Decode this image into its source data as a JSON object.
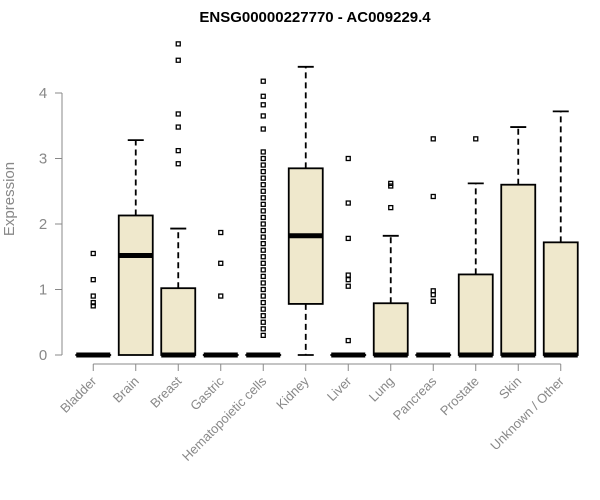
{
  "chart_data": {
    "type": "boxplot",
    "title": "ENSG00000227770 - AC009229.4",
    "ylabel": "Expression",
    "xlabel": "",
    "ylim": [
      0,
      4.8
    ],
    "yticks": [
      0,
      1,
      2,
      3,
      4
    ],
    "categories": [
      "Bladder",
      "Brain",
      "Breast",
      "Gastric",
      "Hematopoietic cells",
      "Kidney",
      "Liver",
      "Lung",
      "Pancreas",
      "Prostate",
      "Skin",
      "Unknown / Other"
    ],
    "boxes": [
      {
        "q1": 0,
        "median": 0,
        "q3": 0,
        "whisker_low": 0,
        "whisker_high": 0,
        "outliers": [
          0.75,
          0.8,
          0.9,
          1.15,
          1.55
        ]
      },
      {
        "q1": 0,
        "median": 1.52,
        "q3": 2.13,
        "whisker_low": 0,
        "whisker_high": 3.28,
        "outliers": []
      },
      {
        "q1": 0,
        "median": 0,
        "q3": 1.02,
        "whisker_low": 0,
        "whisker_high": 1.93,
        "outliers": [
          2.92,
          3.12,
          3.48,
          3.68,
          4.5,
          4.75
        ]
      },
      {
        "q1": 0,
        "median": 0,
        "q3": 0,
        "whisker_low": 0,
        "whisker_high": 0,
        "outliers": [
          0.9,
          1.4,
          1.87
        ]
      },
      {
        "q1": 0,
        "median": 0,
        "q3": 0,
        "whisker_low": 0,
        "whisker_high": 0,
        "outliers": [
          0.3,
          0.4,
          0.5,
          0.6,
          0.7,
          0.8,
          0.9,
          1.0,
          1.1,
          1.2,
          1.3,
          1.4,
          1.5,
          1.6,
          1.7,
          1.8,
          1.9,
          2.0,
          2.1,
          2.2,
          2.3,
          2.4,
          2.5,
          2.6,
          2.7,
          2.8,
          2.9,
          3.0,
          3.1,
          3.45,
          3.65,
          3.82,
          3.95,
          4.18
        ]
      },
      {
        "q1": 0.78,
        "median": 1.82,
        "q3": 2.85,
        "whisker_low": 0,
        "whisker_high": 4.4,
        "outliers": []
      },
      {
        "q1": 0,
        "median": 0,
        "q3": 0,
        "whisker_low": 0,
        "whisker_high": 0,
        "outliers": [
          0.22,
          1.05,
          1.15,
          1.22,
          1.78,
          2.32,
          3.0
        ]
      },
      {
        "q1": 0,
        "median": 0,
        "q3": 0.79,
        "whisker_low": 0,
        "whisker_high": 1.82,
        "outliers": [
          2.25,
          2.58,
          2.62
        ]
      },
      {
        "q1": 0,
        "median": 0,
        "q3": 0,
        "whisker_low": 0,
        "whisker_high": 0,
        "outliers": [
          0.82,
          0.92,
          0.98,
          2.42,
          3.3
        ]
      },
      {
        "q1": 0,
        "median": 0,
        "q3": 1.23,
        "whisker_low": 0,
        "whisker_high": 2.62,
        "outliers": [
          3.3
        ]
      },
      {
        "q1": 0,
        "median": 0,
        "q3": 2.6,
        "whisker_low": 0,
        "whisker_high": 3.48,
        "outliers": []
      },
      {
        "q1": 0,
        "median": 0,
        "q3": 1.72,
        "whisker_low": 0,
        "whisker_high": 3.72,
        "outliers": []
      }
    ],
    "grid": false,
    "box_color": "#efe8cc"
  }
}
